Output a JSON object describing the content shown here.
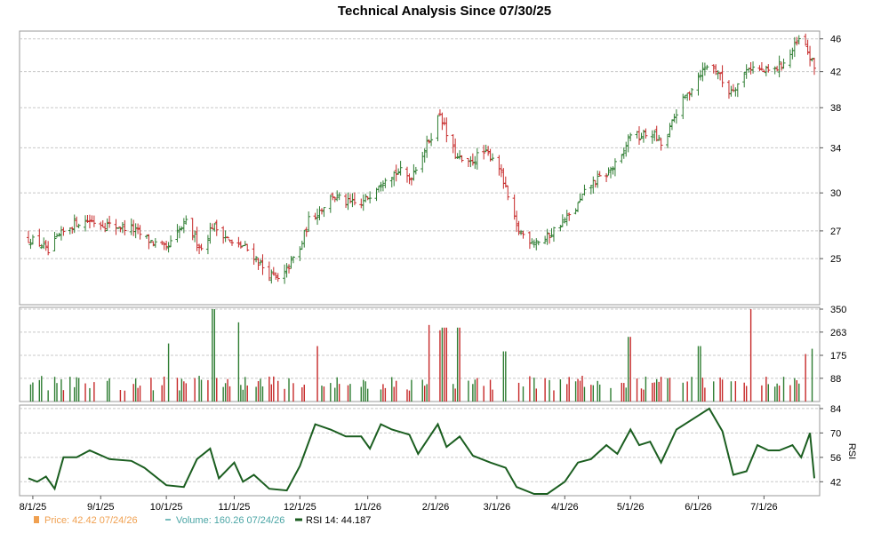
{
  "chart_data": {
    "type": "stock",
    "title": "Technical Analysis Since 07/30/25",
    "x_tick_labels": [
      "8/1/25",
      "9/1/25",
      "10/1/25",
      "11/1/25",
      "12/1/25",
      "1/1/26",
      "2/1/26",
      "3/1/26",
      "4/1/26",
      "5/1/26",
      "6/1/26",
      "7/1/26"
    ],
    "x_tick_dates": [
      "2025-08-01",
      "2025-09-01",
      "2025-10-01",
      "2025-11-01",
      "2025-12-01",
      "2026-01-01",
      "2026-02-01",
      "2026-03-01",
      "2026-04-01",
      "2026-05-01",
      "2026-06-01",
      "2026-07-01"
    ],
    "x_range": [
      "2025-07-30",
      "2026-07-24"
    ],
    "price": {
      "scale": "log",
      "ylim": [
        22,
        47
      ],
      "y_tick_labels": [
        "46",
        "42",
        "38",
        "34",
        "30",
        "27",
        "25"
      ],
      "y_ticks": [
        46,
        42,
        38,
        34,
        30,
        27,
        25
      ],
      "grid": true,
      "up_color": "#2e7d32",
      "down_color": "#c62828",
      "close_anchors": [
        [
          "2025-07-30",
          26.4
        ],
        [
          "2025-08-05",
          26.0
        ],
        [
          "2025-08-08",
          25.4
        ],
        [
          "2025-08-13",
          26.6
        ],
        [
          "2025-08-20",
          27.6
        ],
        [
          "2025-08-27",
          27.8
        ],
        [
          "2025-09-05",
          27.4
        ],
        [
          "2025-09-15",
          27.2
        ],
        [
          "2025-09-22",
          26.4
        ],
        [
          "2025-10-01",
          25.6
        ],
        [
          "2025-10-06",
          26.8
        ],
        [
          "2025-10-10",
          27.6
        ],
        [
          "2025-10-17",
          25.7
        ],
        [
          "2025-10-22",
          27.4
        ],
        [
          "2025-10-27",
          26.8
        ],
        [
          "2025-11-01",
          25.8
        ],
        [
          "2025-11-05",
          25.9
        ],
        [
          "2025-11-10",
          25.2
        ],
        [
          "2025-11-15",
          24.2
        ],
        [
          "2025-11-22",
          23.4
        ],
        [
          "2025-11-27",
          24.8
        ],
        [
          "2025-12-01",
          25.6
        ],
        [
          "2025-12-05",
          27.8
        ],
        [
          "2025-12-10",
          28.6
        ],
        [
          "2025-12-16",
          29.8
        ],
        [
          "2025-12-22",
          29.2
        ],
        [
          "2025-12-29",
          29.0
        ],
        [
          "2026-01-05",
          30.6
        ],
        [
          "2026-01-10",
          31.6
        ],
        [
          "2026-01-16",
          31.8
        ],
        [
          "2026-01-20",
          31.2
        ],
        [
          "2026-01-25",
          33.0
        ],
        [
          "2026-01-30",
          35.2
        ],
        [
          "2026-02-03",
          37.5
        ],
        [
          "2026-02-07",
          34.5
        ],
        [
          "2026-02-11",
          33.0
        ],
        [
          "2026-02-16",
          32.4
        ],
        [
          "2026-02-22",
          33.6
        ],
        [
          "2026-03-01",
          33.0
        ],
        [
          "2026-03-05",
          30.2
        ],
        [
          "2026-03-10",
          27.2
        ],
        [
          "2026-03-15",
          26.4
        ],
        [
          "2026-03-22",
          26.2
        ],
        [
          "2026-03-29",
          27.4
        ],
        [
          "2026-04-05",
          28.4
        ],
        [
          "2026-04-12",
          30.6
        ],
        [
          "2026-04-20",
          31.6
        ],
        [
          "2026-04-27",
          33.0
        ],
        [
          "2026-05-01",
          35.5
        ],
        [
          "2026-05-05",
          35.0
        ],
        [
          "2026-05-11",
          35.5
        ],
        [
          "2026-05-16",
          34.0
        ],
        [
          "2026-05-22",
          37.6
        ],
        [
          "2026-05-27",
          39.4
        ],
        [
          "2026-06-01",
          41.6
        ],
        [
          "2026-06-06",
          43.0
        ],
        [
          "2026-06-10",
          42.0
        ],
        [
          "2026-06-14",
          39.6
        ],
        [
          "2026-06-19",
          40.6
        ],
        [
          "2026-06-24",
          42.6
        ],
        [
          "2026-07-01",
          42.0
        ],
        [
          "2026-07-06",
          42.2
        ],
        [
          "2026-07-12",
          43.6
        ],
        [
          "2026-07-17",
          45.8
        ],
        [
          "2026-07-20",
          45.0
        ],
        [
          "2026-07-24",
          42.4
        ]
      ]
    },
    "volume": {
      "ylim": [
        0,
        350
      ],
      "y_tick_labels": [
        "350",
        "263",
        "175",
        "88"
      ],
      "y_ticks": [
        350,
        263,
        175,
        88
      ],
      "base_level": 75,
      "spikes": [
        [
          "2025-10-02",
          220
        ],
        [
          "2025-10-22",
          350
        ],
        [
          "2025-11-01",
          350
        ],
        [
          "2025-11-02",
          300
        ],
        [
          "2025-12-08",
          210
        ],
        [
          "2026-01-30",
          290
        ],
        [
          "2026-02-02",
          270
        ],
        [
          "2026-02-05",
          280
        ],
        [
          "2026-02-12",
          280
        ],
        [
          "2026-03-04",
          190
        ],
        [
          "2026-05-01",
          245
        ],
        [
          "2026-06-01",
          210
        ],
        [
          "2026-06-25",
          350
        ],
        [
          "2026-07-20",
          180
        ],
        [
          "2026-07-23",
          200
        ]
      ]
    },
    "rsi": {
      "ylim": [
        34,
        86
      ],
      "y_tick_labels": [
        "84",
        "70",
        "56",
        "42"
      ],
      "y_ticks": [
        84,
        70,
        56,
        42
      ],
      "ylabel": "RSI",
      "line_color": "#1b5e20",
      "anchors": [
        [
          "2025-07-30",
          44
        ],
        [
          "2025-08-03",
          42
        ],
        [
          "2025-08-07",
          45
        ],
        [
          "2025-08-11",
          38
        ],
        [
          "2025-08-15",
          56
        ],
        [
          "2025-08-21",
          56
        ],
        [
          "2025-08-27",
          60
        ],
        [
          "2025-09-05",
          55
        ],
        [
          "2025-09-15",
          54
        ],
        [
          "2025-09-21",
          50
        ],
        [
          "2025-10-01",
          40
        ],
        [
          "2025-10-09",
          39
        ],
        [
          "2025-10-15",
          55
        ],
        [
          "2025-10-21",
          61
        ],
        [
          "2025-10-25",
          44
        ],
        [
          "2025-11-01",
          53
        ],
        [
          "2025-11-05",
          42
        ],
        [
          "2025-11-10",
          46
        ],
        [
          "2025-11-17",
          38
        ],
        [
          "2025-11-25",
          37
        ],
        [
          "2025-12-01",
          51
        ],
        [
          "2025-12-08",
          75
        ],
        [
          "2025-12-15",
          72
        ],
        [
          "2025-12-22",
          68
        ],
        [
          "2025-12-29",
          68
        ],
        [
          "2026-01-02",
          61
        ],
        [
          "2026-01-07",
          75
        ],
        [
          "2026-01-12",
          72
        ],
        [
          "2026-01-20",
          69
        ],
        [
          "2026-01-24",
          58
        ],
        [
          "2026-02-02",
          75
        ],
        [
          "2026-02-06",
          62
        ],
        [
          "2026-02-12",
          68
        ],
        [
          "2026-02-18",
          57
        ],
        [
          "2026-02-26",
          53
        ],
        [
          "2026-03-05",
          50
        ],
        [
          "2026-03-10",
          39
        ],
        [
          "2026-03-18",
          35
        ],
        [
          "2026-03-24",
          35
        ],
        [
          "2026-04-01",
          42
        ],
        [
          "2026-04-07",
          53
        ],
        [
          "2026-04-13",
          55
        ],
        [
          "2026-04-20",
          63
        ],
        [
          "2026-04-25",
          58
        ],
        [
          "2026-05-01",
          72
        ],
        [
          "2026-05-05",
          63
        ],
        [
          "2026-05-10",
          65
        ],
        [
          "2026-05-15",
          53
        ],
        [
          "2026-05-22",
          72
        ],
        [
          "2026-06-01",
          80
        ],
        [
          "2026-06-06",
          84
        ],
        [
          "2026-06-12",
          71
        ],
        [
          "2026-06-17",
          46
        ],
        [
          "2026-06-23",
          48
        ],
        [
          "2026-06-28",
          63
        ],
        [
          "2026-07-03",
          60
        ],
        [
          "2026-07-08",
          60
        ],
        [
          "2026-07-14",
          63
        ],
        [
          "2026-07-18",
          56
        ],
        [
          "2026-07-20",
          63
        ],
        [
          "2026-07-22",
          70
        ],
        [
          "2026-07-24",
          44
        ]
      ]
    },
    "legend": [
      {
        "name": "Price",
        "text": "Price: 42.42  07/24/26",
        "color": "#f0a050"
      },
      {
        "name": "Volume",
        "text": "Volume: 160.26  07/24/26",
        "color": "#4aa5a5"
      },
      {
        "name": "RSI 14",
        "text": "RSI 14: 44.187",
        "color": "#000000"
      }
    ]
  }
}
